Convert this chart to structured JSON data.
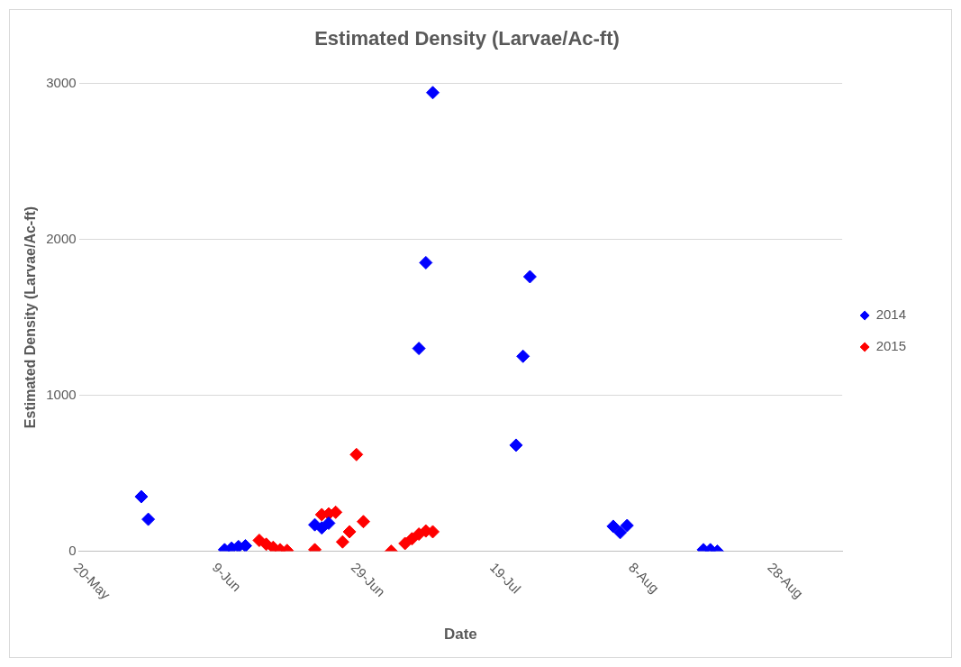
{
  "chart_data": {
    "type": "scatter",
    "title": "Estimated Density (Larvae/Ac-ft)",
    "xlabel": "Date",
    "ylabel": "Estimated Density (Larvae/Ac-ft)",
    "series": [
      {
        "name": "2014",
        "color": "#0000ff",
        "x": [
          "--05-29",
          "--05-30",
          "--06-10",
          "--06-11",
          "--06-12",
          "--06-13",
          "--06-23",
          "--06-24",
          "--06-25",
          "--07-08",
          "--07-09",
          "--07-10",
          "--07-22",
          "--07-23",
          "--07-24",
          "--08-05",
          "--08-06",
          "--08-07",
          "--08-18",
          "--08-19",
          "--08-20"
        ],
        "values": [
          350,
          205,
          10,
          20,
          30,
          35,
          170,
          150,
          180,
          1300,
          1850,
          2940,
          680,
          1250,
          1760,
          160,
          120,
          165,
          10,
          10,
          0
        ]
      },
      {
        "name": "2015",
        "color": "#ff0000",
        "x": [
          "--06-15",
          "--06-16",
          "--06-17",
          "--06-18",
          "--06-19",
          "--06-23",
          "--06-24",
          "--06-25",
          "--06-26",
          "--06-27",
          "--06-28",
          "--06-29",
          "--06-30",
          "--07-04",
          "--07-06",
          "--07-07",
          "--07-08",
          "--07-09",
          "--07-10"
        ],
        "values": [
          70,
          45,
          25,
          10,
          5,
          10,
          235,
          240,
          250,
          60,
          125,
          620,
          190,
          0,
          50,
          80,
          110,
          130,
          125
        ]
      }
    ],
    "xlim": [
      "--05-20",
      "--09-07"
    ],
    "xticks": [
      {
        "value": "--05-20",
        "label": "20-May"
      },
      {
        "value": "--06-09",
        "label": "9-Jun"
      },
      {
        "value": "--06-29",
        "label": "29-Jun"
      },
      {
        "value": "--07-19",
        "label": "19-Jul"
      },
      {
        "value": "--08-08",
        "label": "8-Aug"
      },
      {
        "value": "--08-28",
        "label": "28-Aug"
      }
    ],
    "ylim": [
      0,
      3000
    ],
    "yticks": [
      0,
      1000,
      2000,
      3000
    ],
    "grid": "y",
    "legend": "right",
    "marker": "diamond"
  }
}
